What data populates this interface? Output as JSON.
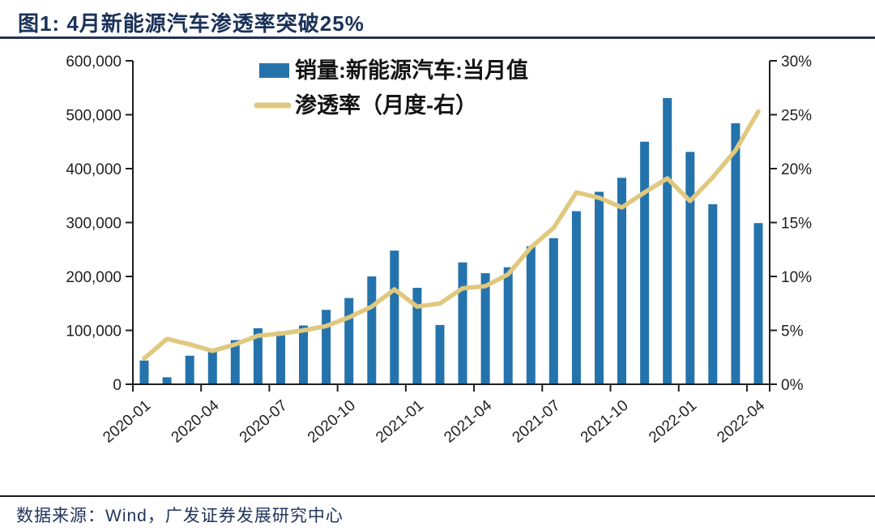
{
  "header": {
    "title": "图1: 4月新能源汽车渗透率突破25%"
  },
  "footer": {
    "source": "数据来源：Wind，广发证券发展研究中心"
  },
  "colors": {
    "bar": "#2473AC",
    "line": "#E0C87E",
    "title_navy": "#1A3158",
    "axis": "#1f1f1f"
  },
  "chart_data": {
    "type": "bar",
    "subtype": "bar+line dual-axis combo",
    "title": "图1: 4月新能源汽车渗透率突破25%",
    "grid": false,
    "legend_position": "top-center",
    "x_tick_every": 3,
    "categories": [
      "2020-01",
      "2020-02",
      "2020-03",
      "2020-04",
      "2020-05",
      "2020-06",
      "2020-07",
      "2020-08",
      "2020-09",
      "2020-10",
      "2020-11",
      "2020-12",
      "2021-01",
      "2021-02",
      "2021-03",
      "2021-04",
      "2021-05",
      "2021-06",
      "2021-07",
      "2021-08",
      "2021-09",
      "2021-10",
      "2021-11",
      "2021-12",
      "2022-01",
      "2022-02",
      "2022-03",
      "2022-04"
    ],
    "series": [
      {
        "name": "销量:新能源汽车:当月值",
        "type": "bar",
        "axis": "left",
        "color": "#2473AC",
        "values": [
          44000,
          13000,
          53000,
          64000,
          82000,
          104000,
          98000,
          109000,
          138000,
          160000,
          200000,
          248000,
          179000,
          110000,
          226000,
          206000,
          217000,
          256000,
          271000,
          321000,
          357000,
          383000,
          450000,
          531000,
          431000,
          334000,
          484000,
          299000
        ]
      },
      {
        "name": "渗透率（月度-右）",
        "type": "line",
        "axis": "right",
        "color": "#E0C87E",
        "values": [
          2.4,
          4.2,
          3.7,
          3.1,
          3.7,
          4.5,
          4.7,
          5.0,
          5.4,
          6.2,
          7.2,
          8.8,
          7.2,
          7.5,
          8.9,
          9.1,
          10.2,
          12.7,
          14.5,
          17.8,
          17.3,
          16.4,
          17.8,
          19.1,
          17.0,
          19.2,
          21.7,
          25.3
        ]
      }
    ],
    "left_axis": {
      "min": 0,
      "max": 600000,
      "step": 100000,
      "tick_labels": [
        "0",
        "100,000",
        "200,000",
        "300,000",
        "400,000",
        "500,000",
        "600,000"
      ]
    },
    "right_axis": {
      "min": 0,
      "max": 30,
      "step": 5,
      "tick_labels": [
        "0%",
        "5%",
        "10%",
        "15%",
        "20%",
        "25%",
        "30%"
      ]
    }
  }
}
